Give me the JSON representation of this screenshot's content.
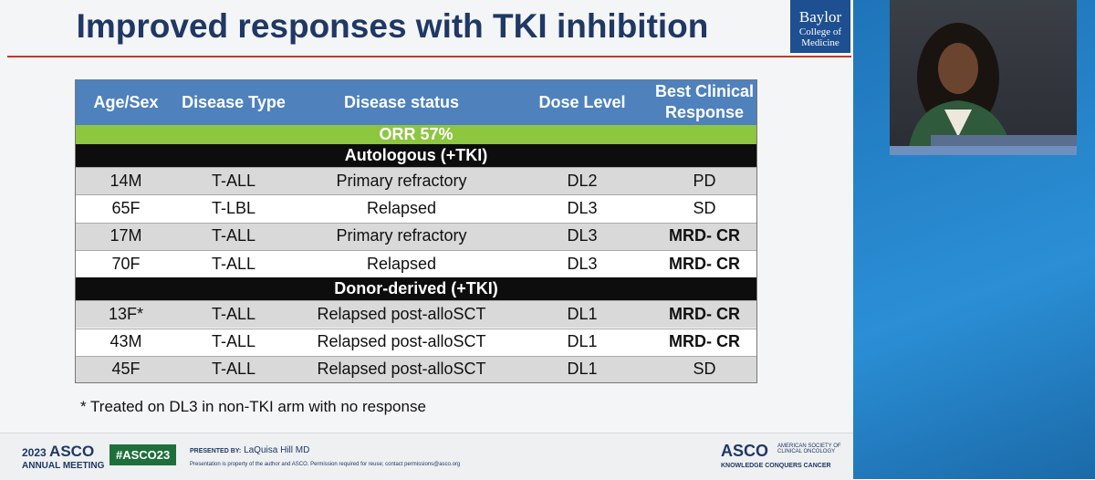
{
  "slide": {
    "title": "Improved responses with TKI inhibition",
    "logo": [
      "Baylor",
      "College of",
      "Medicine"
    ]
  },
  "table": {
    "header": [
      "Age/Sex",
      "Disease Type",
      "Disease status",
      "Dose Level",
      "Best Clinical Response"
    ],
    "summary": "ORR 57%",
    "groups": [
      {
        "label": "Autologous (+TKI)",
        "rows": [
          {
            "cells": [
              "14M",
              "T-ALL",
              "Primary refractory",
              "DL2",
              "PD"
            ],
            "response_bold": false
          },
          {
            "cells": [
              "65F",
              "T-LBL",
              "Relapsed",
              "DL3",
              "SD"
            ],
            "response_bold": false
          },
          {
            "cells": [
              "17M",
              "T-ALL",
              "Primary refractory",
              "DL3",
              "MRD- CR"
            ],
            "response_bold": true
          },
          {
            "cells": [
              "70F",
              "T-ALL",
              "Relapsed",
              "DL3",
              "MRD- CR"
            ],
            "response_bold": true
          }
        ]
      },
      {
        "label": "Donor-derived (+TKI)",
        "rows": [
          {
            "cells": [
              "13F*",
              "T-ALL",
              "Relapsed post-alloSCT",
              "DL1",
              "MRD- CR"
            ],
            "response_bold": true
          },
          {
            "cells": [
              "43M",
              "T-ALL",
              "Relapsed post-alloSCT",
              "DL1",
              "MRD- CR"
            ],
            "response_bold": true
          },
          {
            "cells": [
              "45F",
              "T-ALL",
              "Relapsed post-alloSCT",
              "DL1",
              "SD"
            ],
            "response_bold": false
          }
        ]
      }
    ]
  },
  "footnote": "* Treated on DL3 in non-TKI arm with no response",
  "footer": {
    "meeting_year": "2023",
    "meeting_name": "ASCO",
    "meeting_sub": "ANNUAL MEETING",
    "hashtag": "#ASCO23",
    "presented_by_label": "PRESENTED BY:",
    "presenter": "LaQuisa Hill MD",
    "notice": "Presentation is property of the author and ASCO. Permission required for reuse; contact permissions@asco.org",
    "org_logo": "ASCO",
    "org_name": "AMERICAN SOCIETY OF CLINICAL ONCOLOGY",
    "org_tagline": "KNOWLEDGE CONQUERS CANCER"
  }
}
